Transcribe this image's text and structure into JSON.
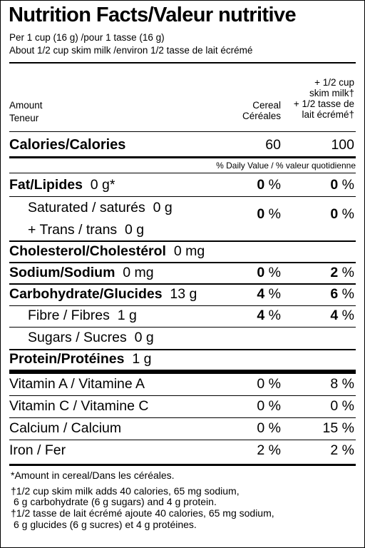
{
  "title": "Nutrition Facts/Valeur nutritive",
  "serving": {
    "line1": "Per 1 cup (16 g) /pour 1 tasse (16 g)",
    "line2": "About 1/2 cup skim milk /environ 1/2 tasse de lait écrémé"
  },
  "header": {
    "amount": "Amount",
    "teneur": "Teneur",
    "col1_line1": "Cereal",
    "col1_line2": "Céréales",
    "col2_line1": "+ 1/2 cup",
    "col2_line2": "skim milk†",
    "col2_line3": "+ 1/2 tasse de",
    "col2_line4": "lait écrémé†"
  },
  "calories": {
    "label": "Calories/Calories",
    "cereal": "60",
    "with_milk": "100"
  },
  "dv_note": "% Daily Value / % valeur quotidienne",
  "nutrients": {
    "fat": {
      "label": "Fat/Lipides",
      "amount": "0 g*",
      "cereal": "0",
      "milk": "0",
      "unit": "%"
    },
    "saturated": {
      "label": "Saturated / saturés",
      "amount": "0 g"
    },
    "trans": {
      "label": "+ Trans / trans",
      "amount": "0 g",
      "cereal": "0",
      "milk": "0",
      "unit": "%"
    },
    "cholesterol": {
      "label": "Cholesterol/Cholestérol",
      "amount": "0 mg"
    },
    "sodium": {
      "label": "Sodium/Sodium",
      "amount": "0 mg",
      "cereal": "0",
      "milk": "2",
      "unit": "%"
    },
    "carbohydrate": {
      "label": "Carbohydrate/Glucides",
      "amount": "13 g",
      "cereal": "4",
      "milk": "6",
      "unit": "%"
    },
    "fibre": {
      "label": "Fibre / Fibres",
      "amount": "1 g",
      "cereal": "4",
      "milk": "4",
      "unit": "%"
    },
    "sugars": {
      "label": "Sugars / Sucres",
      "amount": "0 g"
    },
    "protein": {
      "label": "Protein/Protéines",
      "amount": "1 g"
    }
  },
  "vitamins": {
    "vitamin_a": {
      "label": "Vitamin A / Vitamine A",
      "cereal": "0 %",
      "milk": "8 %"
    },
    "vitamin_c": {
      "label": "Vitamin C / Vitamine C",
      "cereal": "0 %",
      "milk": "0 %"
    },
    "calcium": {
      "label": "Calcium / Calcium",
      "cereal": "0 %",
      "milk": "15 %"
    },
    "iron": {
      "label": "Iron / Fer",
      "cereal": "2 %",
      "milk": "2 %"
    }
  },
  "footnotes": {
    "line1": "*Amount in cereal/Dans les céréales.",
    "line2": "†1/2 cup skim milk adds 40 calories, 65 mg sodium,",
    "line3": "6 g carbohydrate (6 g sugars) and 4 g protein.",
    "line4": "†1/2 tasse de lait écrémé ajoute 40 calories, 65 mg sodium,",
    "line5": "6 g glucides (6 g sucres) et 4 g protéines."
  }
}
